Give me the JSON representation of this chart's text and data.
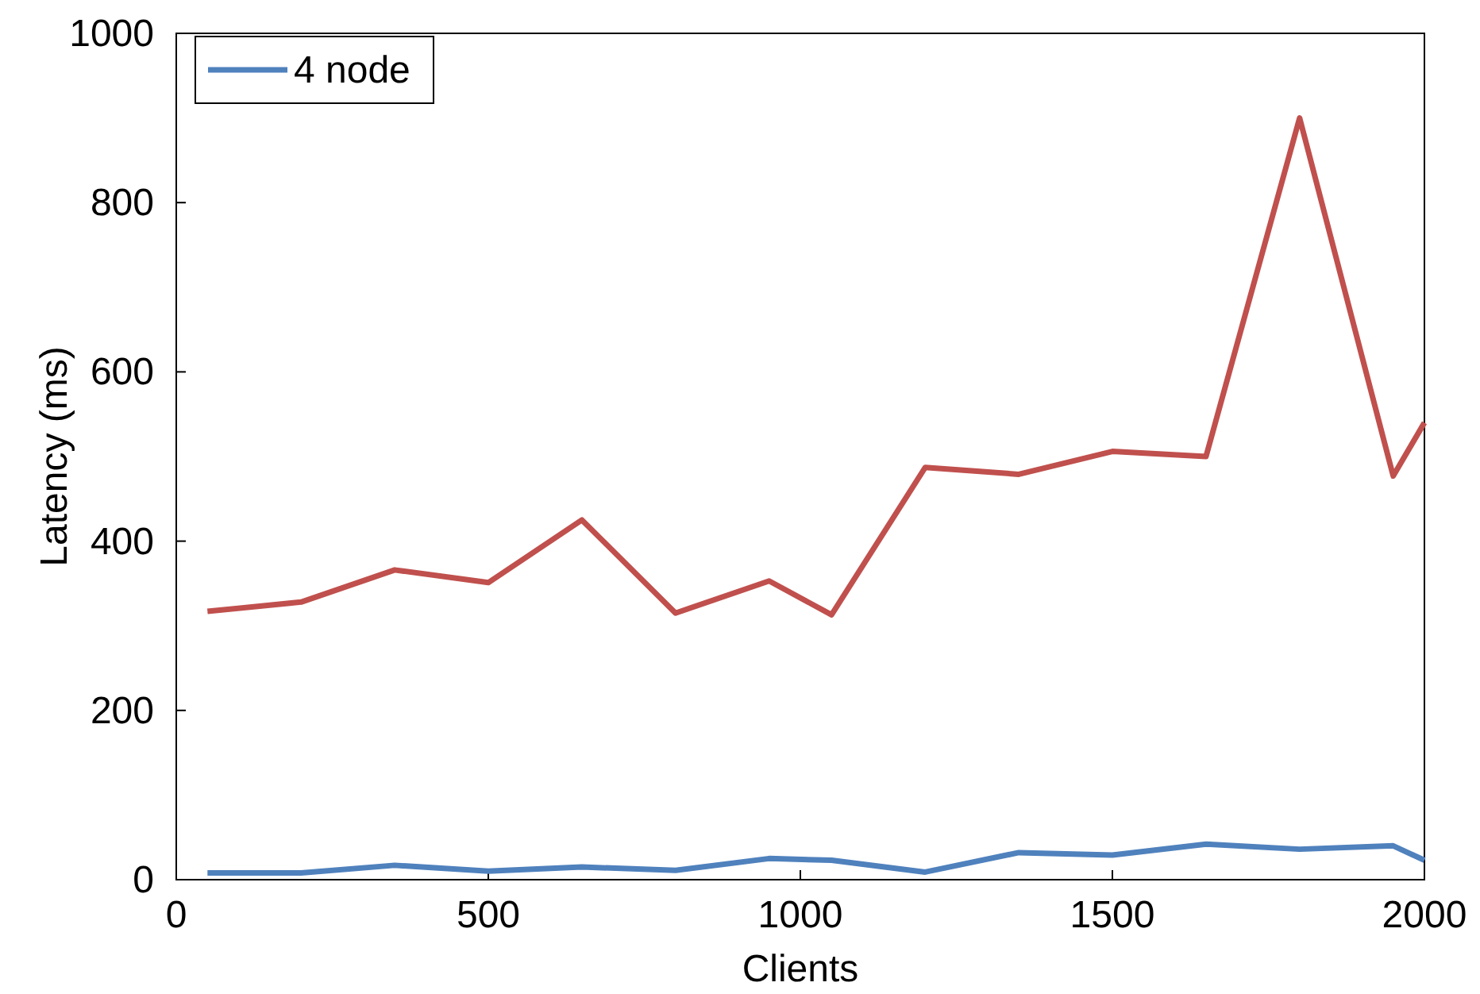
{
  "chart_data": {
    "type": "line",
    "xlabel": "Clients",
    "ylabel": "Latency (ms)",
    "xlim": [
      0,
      2000
    ],
    "xticks": [
      0,
      500,
      1000,
      1500,
      2000
    ],
    "ylim": [
      0,
      1000
    ],
    "yticks": [
      0,
      200,
      400,
      600,
      800,
      1000
    ],
    "grid": false,
    "legend": "top left",
    "marker": "none",
    "line_style": "solid",
    "series": [
      {
        "name": "4 node",
        "color": "#4f81bd",
        "x": [
          50,
          200,
          350,
          500,
          650,
          800,
          950,
          1050,
          1200,
          1350,
          1500,
          1650,
          1800,
          1950,
          2000
        ],
        "values": [
          8,
          8,
          17,
          10,
          15,
          11,
          25,
          23,
          9,
          32,
          29,
          42,
          36,
          40,
          23
        ]
      },
      {
        "color": "#c0504d",
        "x": [
          50,
          200,
          350,
          500,
          650,
          800,
          950,
          1050,
          1200,
          1350,
          1500,
          1650,
          1800,
          1950,
          2000
        ],
        "values": [
          317,
          328,
          366,
          351,
          425,
          315,
          353,
          313,
          487,
          479,
          506,
          500,
          900,
          477,
          540
        ]
      }
    ]
  }
}
